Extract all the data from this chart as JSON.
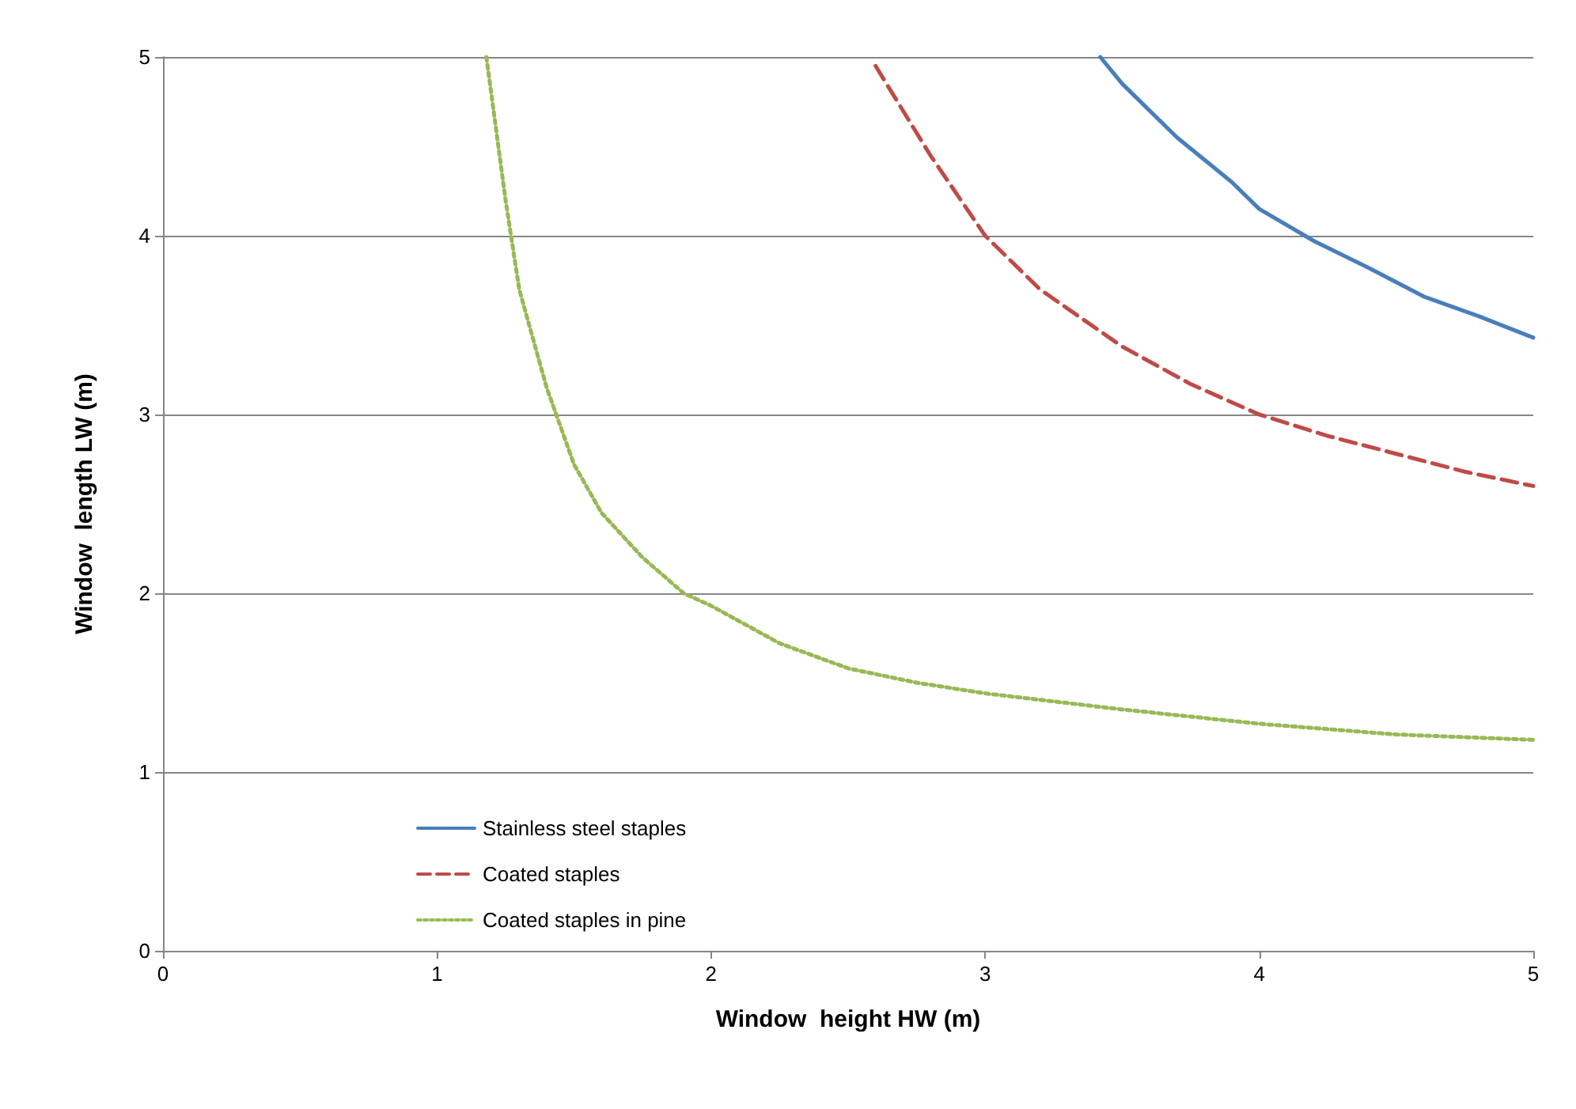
{
  "chart_data": {
    "type": "line",
    "xlabel": "Window  height HW (m)",
    "ylabel": "Window  length LW (m)",
    "xlim": [
      0,
      5
    ],
    "xticks": [
      0,
      1,
      2,
      3,
      4,
      5
    ],
    "ylim": [
      0,
      5
    ],
    "yticks": [
      0,
      1,
      2,
      3,
      4,
      5
    ],
    "grid": "y",
    "legend": "bottom left",
    "marker": "none",
    "series": [
      {
        "name": "Stainless steel staples",
        "color": "#4a7ebb",
        "line_style": "solid",
        "x": [
          3.42,
          3.5,
          3.7,
          3.9,
          4,
          4.2,
          4.4,
          4.6,
          4.8,
          5
        ],
        "values": [
          5,
          4.85,
          4.55,
          4.3,
          4.15,
          3.97,
          3.82,
          3.66,
          3.55,
          3.43
        ]
      },
      {
        "name": "Coated staples",
        "color": "#be4b48",
        "line_style": "dashed",
        "x": [
          2.6,
          2.8,
          3,
          3.2,
          3.5,
          3.75,
          4,
          4.25,
          4.5,
          4.75,
          5
        ],
        "values": [
          4.95,
          4.45,
          4,
          3.7,
          3.38,
          3.17,
          3,
          2.88,
          2.78,
          2.68,
          2.6
        ]
      },
      {
        "name": "Coated staples in pine",
        "color": "#98b954",
        "line_style": "dotted",
        "x": [
          1.18,
          1.25,
          1.3,
          1.4,
          1.5,
          1.6,
          1.75,
          1.9,
          2,
          2.25,
          2.5,
          2.75,
          3,
          3.5,
          4,
          4.5,
          5
        ],
        "values": [
          5,
          4.2,
          3.7,
          3.15,
          2.72,
          2.45,
          2.2,
          2,
          1.93,
          1.72,
          1.58,
          1.5,
          1.44,
          1.35,
          1.27,
          1.21,
          1.18
        ]
      }
    ]
  }
}
